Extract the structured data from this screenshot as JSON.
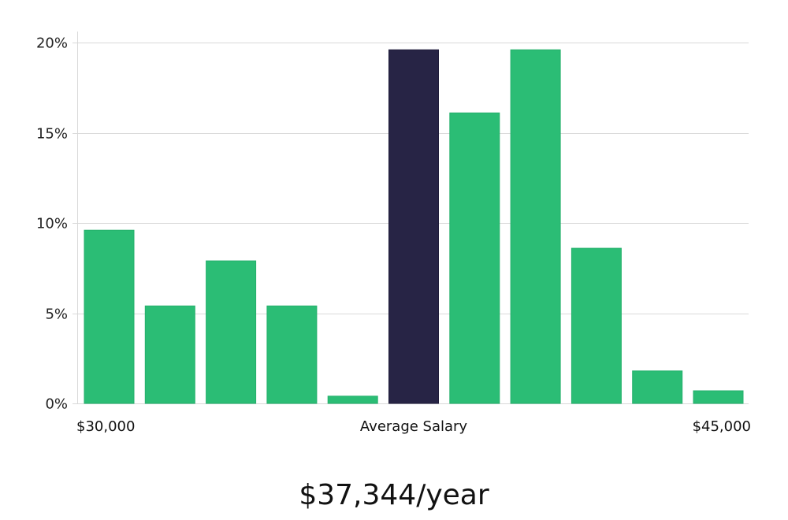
{
  "chart_data": {
    "type": "bar",
    "values": [
      9.6,
      5.4,
      7.9,
      5.4,
      0.4,
      19.6,
      16.1,
      19.6,
      8.6,
      1.8,
      0.7
    ],
    "highlight_index": 5,
    "ylim": [
      0,
      20
    ],
    "y_ticks": [
      0,
      5,
      10,
      15,
      20
    ],
    "y_tick_format": "%",
    "x_labels": {
      "left": "$30,000",
      "center": "Average Salary",
      "right": "$45,000"
    },
    "grid": true,
    "colors": {
      "bar": "#2bbd75",
      "highlight": "#272445",
      "grid": "#d9d9d9"
    }
  },
  "salary": "$37,344/year"
}
